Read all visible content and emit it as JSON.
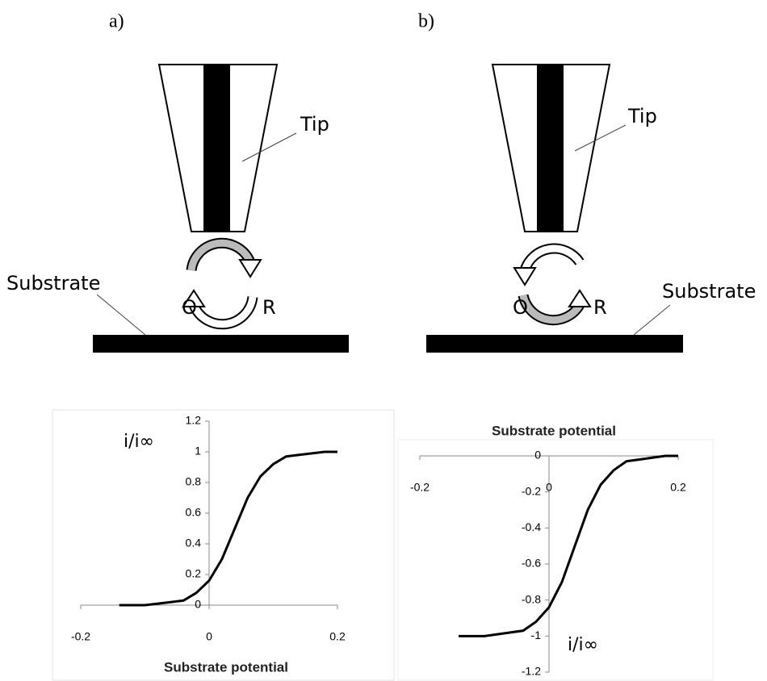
{
  "panels": [
    {
      "label": "a)",
      "tip": "Tip",
      "substrate": "Substrate",
      "oxidized": "O",
      "reduced": "R"
    },
    {
      "label": "b)",
      "tip": "Tip",
      "substrate": "Substrate",
      "oxidized": "O",
      "reduced": "R"
    }
  ],
  "chart_data": [
    {
      "type": "line",
      "x_label": "Substrate potential",
      "y_label": "i/i∞",
      "x": [
        -0.14,
        -0.12,
        -0.1,
        -0.08,
        -0.06,
        -0.04,
        -0.02,
        0,
        0.02,
        0.04,
        0.06,
        0.08,
        0.1,
        0.12,
        0.14,
        0.16,
        0.18,
        0.2
      ],
      "values": [
        0.0,
        0.0,
        0.0,
        0.01,
        0.02,
        0.03,
        0.08,
        0.16,
        0.3,
        0.5,
        0.7,
        0.84,
        0.92,
        0.97,
        0.98,
        0.99,
        1.0,
        1.0
      ],
      "color": "#000000",
      "xlim": [
        -0.2,
        0.2
      ],
      "xticks": [
        -0.2,
        0,
        0.2
      ],
      "ylim": [
        0,
        1.2
      ],
      "yticks": [
        0,
        0.2,
        0.4,
        0.6,
        0.8,
        1,
        1.2
      ]
    },
    {
      "type": "line",
      "x_label": "Substrate potential",
      "y_label": "i/i∞",
      "x": [
        -0.14,
        -0.12,
        -0.1,
        -0.08,
        -0.06,
        -0.04,
        -0.02,
        0,
        0.02,
        0.04,
        0.06,
        0.08,
        0.1,
        0.12,
        0.14,
        0.16,
        0.18,
        0.2
      ],
      "values": [
        -1.0,
        -1.0,
        -1.0,
        -0.99,
        -0.98,
        -0.97,
        -0.92,
        -0.84,
        -0.7,
        -0.5,
        -0.3,
        -0.16,
        -0.08,
        -0.03,
        -0.02,
        -0.01,
        0.0,
        0.0
      ],
      "color": "#000000",
      "xlim": [
        -0.2,
        0.2
      ],
      "xticks": [
        -0.2,
        0,
        0.2
      ],
      "ylim": [
        -1.2,
        0
      ],
      "yticks": [
        0,
        -0.2,
        -0.4,
        -0.6,
        -0.8,
        -1,
        -1.2
      ]
    }
  ]
}
